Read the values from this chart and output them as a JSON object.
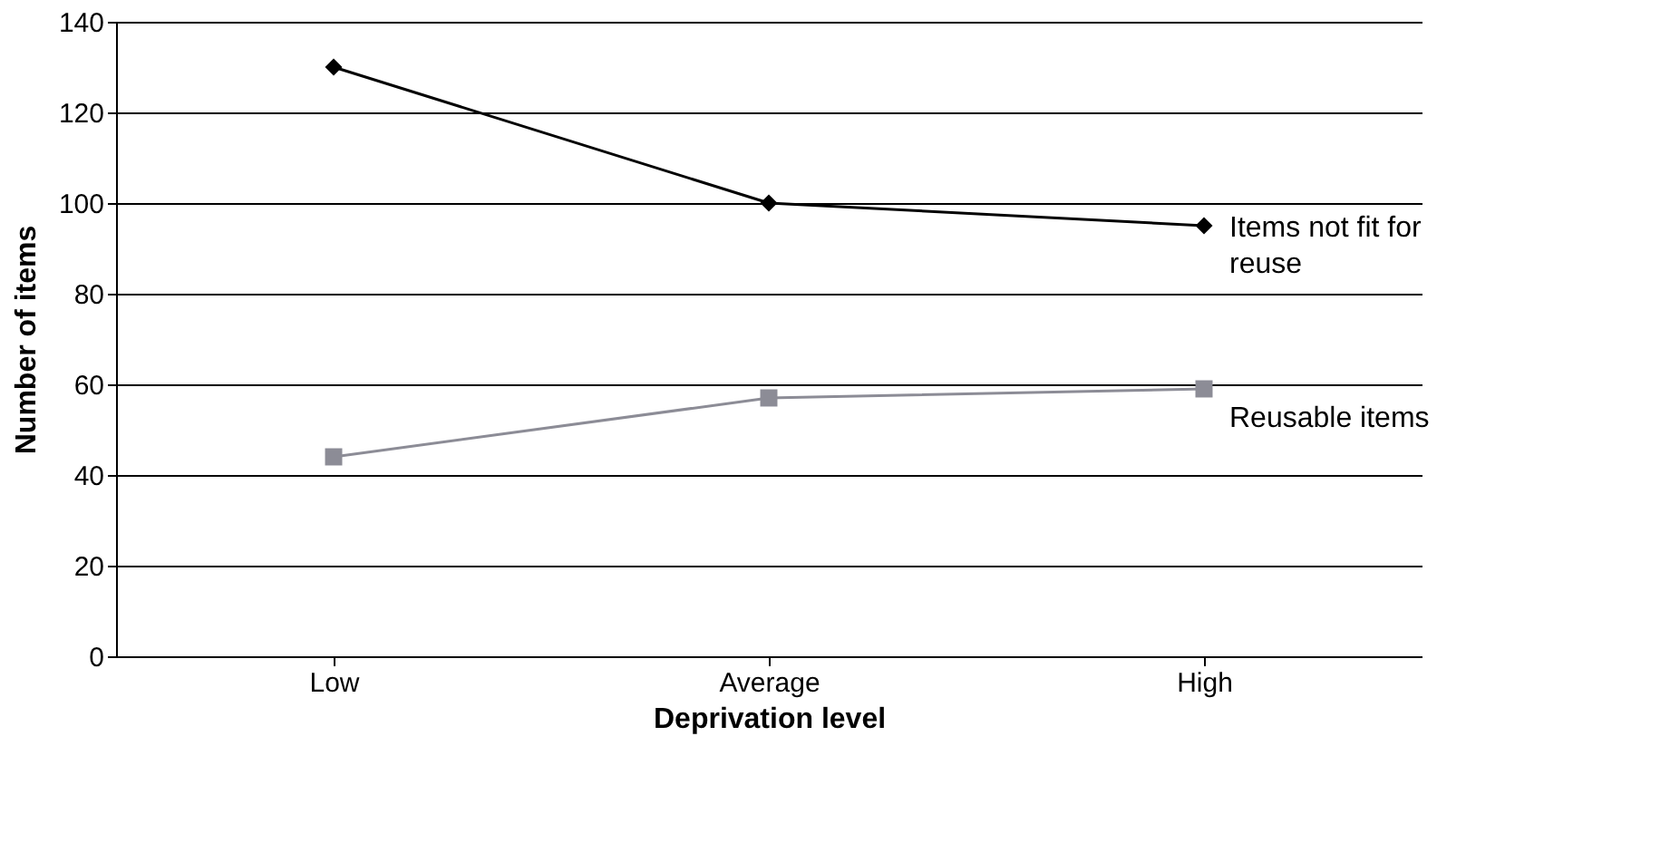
{
  "chart_data": {
    "type": "line",
    "xlabel": "Deprivation level",
    "ylabel": "Number of items",
    "categories": [
      "Low",
      "Average",
      "High"
    ],
    "series": [
      {
        "name": "Items not fit for reuse",
        "color": "#000000",
        "marker": "diamond",
        "values": [
          130,
          100,
          95
        ]
      },
      {
        "name": "Reusable items",
        "color": "#8c8c96",
        "marker": "square",
        "values": [
          44,
          57,
          59
        ]
      }
    ],
    "ylim": [
      0,
      140
    ],
    "yticks": [
      0,
      20,
      40,
      60,
      80,
      100,
      120,
      140
    ],
    "grid": "y",
    "legend": false,
    "line_style": "solid"
  }
}
